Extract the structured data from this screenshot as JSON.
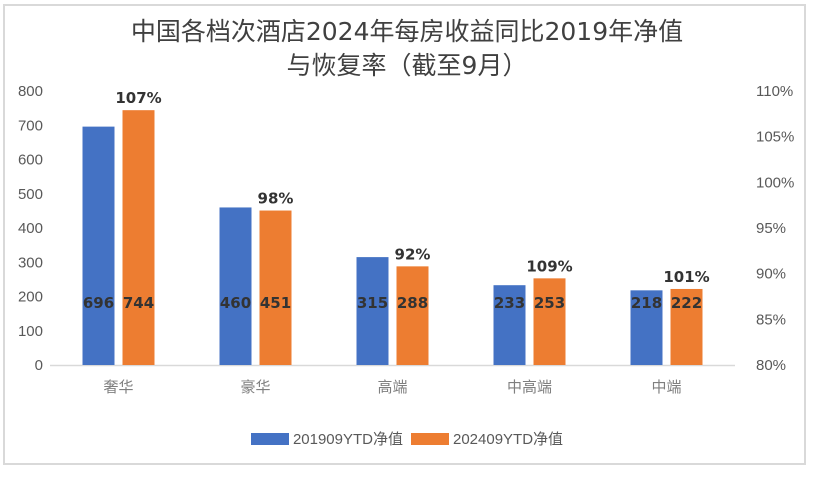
{
  "chart_data": {
    "type": "bar",
    "title_line1": "中国各档次酒店2024年每房收益同比2019年净值",
    "title_line2": "与恢复率（截至9月）",
    "categories": [
      "奢华",
      "豪华",
      "高端",
      "中高端",
      "中端"
    ],
    "series": [
      {
        "name": "201909YTD净值",
        "color": "#4472c4",
        "values": [
          696,
          460,
          315,
          233,
          218
        ],
        "labels": [
          "696",
          "460",
          "315",
          "233",
          "218"
        ]
      },
      {
        "name": "202409YTD净值",
        "color": "#ed7d31",
        "values": [
          744,
          451,
          288,
          253,
          222
        ],
        "labels": [
          "744",
          "451",
          "288",
          "253",
          "222"
        ]
      }
    ],
    "recovery_rates": [
      "107%",
      "98%",
      "92%",
      "109%",
      "101%"
    ],
    "ylim": [
      0,
      800
    ],
    "yticks": [
      "0",
      "100",
      "200",
      "300",
      "400",
      "500",
      "600",
      "700",
      "800"
    ],
    "y2lim": [
      80,
      110
    ],
    "y2ticks": [
      "80%",
      "85%",
      "90%",
      "95%",
      "100%",
      "105%",
      "110%"
    ],
    "legend_position": "bottom",
    "grid": false
  }
}
